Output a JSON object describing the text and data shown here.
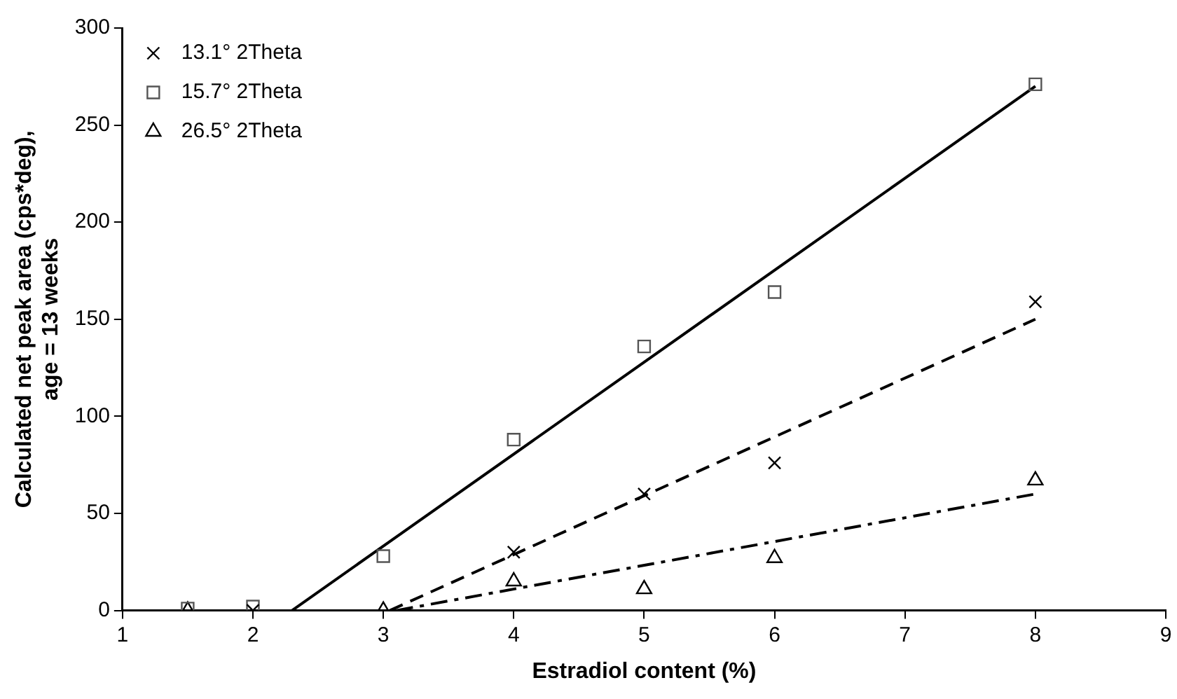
{
  "chart_data": {
    "type": "scatter",
    "xlabel": "Estradiol content (%)",
    "ylabel": "Calculated net peak area (cps*deg),\nage = 13 weeks",
    "xlim": [
      1,
      9
    ],
    "xticks": [
      1,
      2,
      3,
      4,
      5,
      6,
      7,
      8,
      9
    ],
    "ylim": [
      0,
      300
    ],
    "yticks": [
      0,
      50,
      100,
      150,
      200,
      250,
      300
    ],
    "grid": false,
    "legend": "top left",
    "series": [
      {
        "name": "13.1° 2Theta",
        "marker": "cross",
        "color": "#000000",
        "x": [
          2,
          4,
          5,
          6,
          8
        ],
        "values": [
          0,
          30,
          60,
          76,
          159
        ]
      },
      {
        "name": "15.7° 2Theta",
        "marker": "square",
        "color": "#555555",
        "x": [
          1.5,
          2,
          3,
          4,
          5,
          6,
          8
        ],
        "values": [
          1,
          2,
          28,
          88,
          136,
          164,
          271
        ]
      },
      {
        "name": "26.5° 2Theta",
        "marker": "triangle",
        "color": "#000000",
        "x": [
          1.5,
          3,
          4,
          5,
          6,
          8
        ],
        "values": [
          0,
          0,
          15,
          11,
          27,
          67
        ]
      },
      {
        "type": "line",
        "line_style": "solid",
        "color": "#000000",
        "x": [
          2.3,
          8
        ],
        "values": [
          0,
          270
        ]
      },
      {
        "type": "line",
        "line_style": "dashed",
        "color": "#000000",
        "x": [
          3.05,
          8
        ],
        "values": [
          0,
          150
        ]
      },
      {
        "type": "line",
        "line_style": "dashdot",
        "color": "#000000",
        "x": [
          3.1,
          8
        ],
        "values": [
          0,
          60
        ]
      }
    ]
  }
}
